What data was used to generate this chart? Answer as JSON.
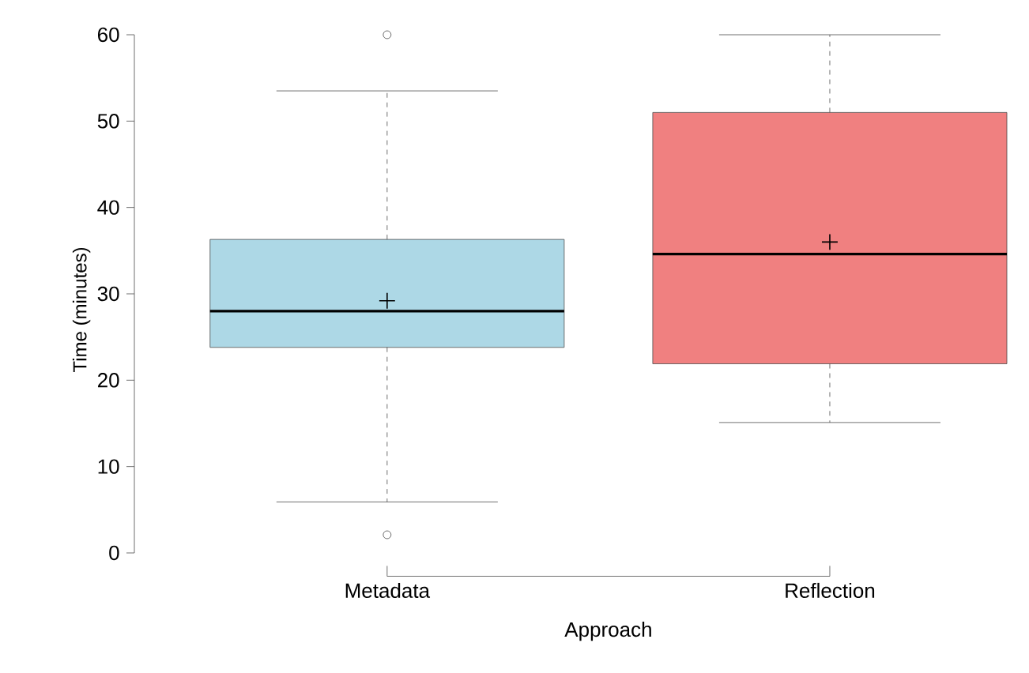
{
  "chart_data": {
    "type": "box",
    "xlabel": "Approach",
    "ylabel": "Time (minutes)",
    "categories": [
      "Metadata",
      "Reflection"
    ],
    "colors": [
      "#add8e6",
      "#f08080"
    ],
    "boxes": [
      {
        "low": 5.9,
        "q1": 23.8,
        "median": 28.0,
        "q3": 36.3,
        "high": 53.5,
        "mean": 29.2,
        "outliers": [
          60,
          2.1
        ]
      },
      {
        "low": 15.1,
        "q1": 21.9,
        "median": 34.6,
        "q3": 51.0,
        "high": 60,
        "mean": 36.0
      }
    ],
    "ylim": [
      0,
      60
    ],
    "yticks": [
      0,
      10,
      20,
      30,
      40,
      50,
      60
    ]
  }
}
